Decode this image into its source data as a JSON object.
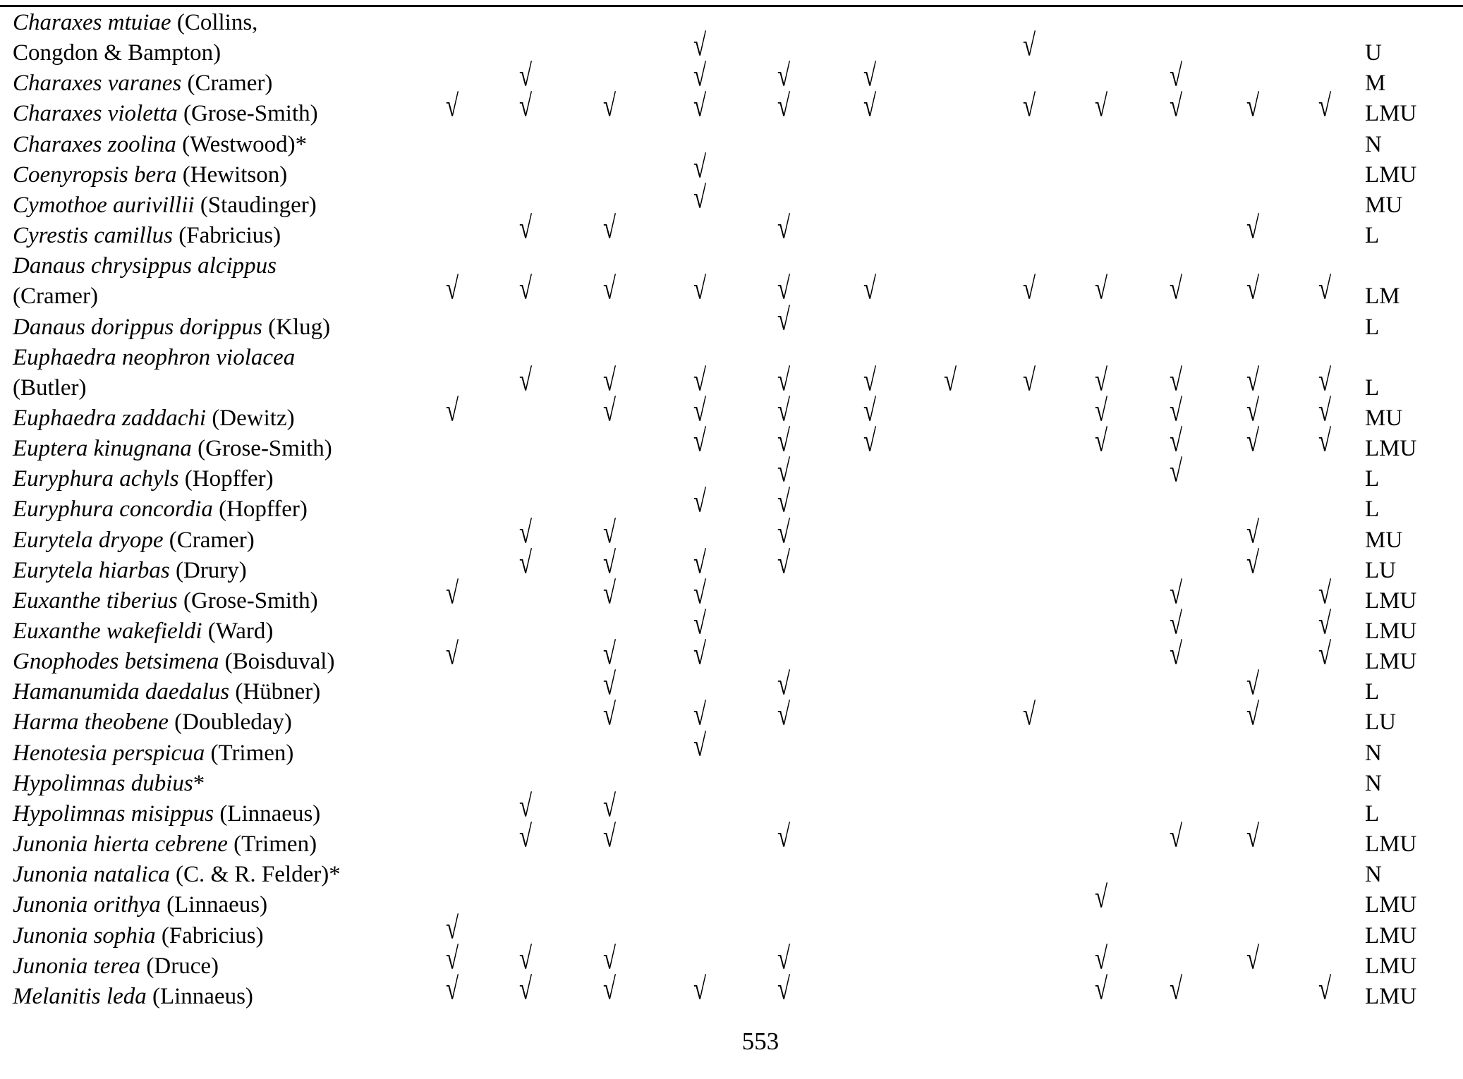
{
  "check_symbol": "√",
  "rows": [
    {
      "lines": [
        {
          "italic": "Charaxes mtuiae",
          "roman": " (Collins,"
        },
        {
          "italic": "",
          "roman": "Congdon & Bampton)"
        }
      ],
      "checks": [
        4,
        8
      ],
      "code": "U"
    },
    {
      "lines": [
        {
          "italic": "Charaxes varanes",
          "roman": " (Cramer)"
        }
      ],
      "checks": [
        2,
        4,
        5,
        6,
        10
      ],
      "code": "M"
    },
    {
      "lines": [
        {
          "italic": "Charaxes violetta",
          "roman": " (Grose-Smith)"
        }
      ],
      "checks": [
        1,
        2,
        3,
        4,
        5,
        6,
        8,
        9,
        10,
        11,
        12
      ],
      "code": "LMU"
    },
    {
      "lines": [
        {
          "italic": "Charaxes zoolina",
          "roman": " (Westwood)*"
        }
      ],
      "checks": [],
      "code": "N"
    },
    {
      "lines": [
        {
          "italic": "Coenyropsis bera",
          "roman": " (Hewitson)"
        }
      ],
      "checks": [
        4
      ],
      "code": "LMU"
    },
    {
      "lines": [
        {
          "italic": "Cymothoe aurivillii",
          "roman": " (Staudinger)"
        }
      ],
      "checks": [
        4
      ],
      "code": "MU"
    },
    {
      "lines": [
        {
          "italic": "Cyrestis camillus",
          "roman": " (Fabricius)"
        }
      ],
      "checks": [
        2,
        3,
        5,
        11
      ],
      "code": "L"
    },
    {
      "lines": [
        {
          "italic": "Danaus chrysippus alcippus",
          "roman": ""
        },
        {
          "italic": "",
          "roman": "(Cramer)"
        }
      ],
      "checks": [
        1,
        2,
        3,
        4,
        5,
        6,
        8,
        9,
        10,
        11,
        12
      ],
      "code": "LM"
    },
    {
      "lines": [
        {
          "italic": "Danaus dorippus dorippus",
          "roman": " (Klug)"
        }
      ],
      "checks": [
        5
      ],
      "code": "L"
    },
    {
      "lines": [
        {
          "italic": "Euphaedra neophron violacea",
          "roman": ""
        },
        {
          "italic": "",
          "roman": "(Butler)"
        }
      ],
      "checks": [
        2,
        3,
        4,
        5,
        6,
        7,
        8,
        9,
        10,
        11,
        12
      ],
      "code": "L"
    },
    {
      "lines": [
        {
          "italic": "Euphaedra zaddachi",
          "roman": " (Dewitz)"
        }
      ],
      "checks": [
        1,
        3,
        4,
        5,
        6,
        9,
        10,
        11,
        12
      ],
      "code": "MU"
    },
    {
      "lines": [
        {
          "italic": "Euptera kinugnana",
          "roman": " (Grose-Smith)"
        }
      ],
      "checks": [
        4,
        5,
        6,
        9,
        10,
        11,
        12
      ],
      "code": "LMU"
    },
    {
      "lines": [
        {
          "italic": "Euryphura achyls",
          "roman": " (Hopffer)"
        }
      ],
      "checks": [
        5,
        10
      ],
      "code": "L"
    },
    {
      "lines": [
        {
          "italic": "Euryphura concordia",
          "roman": " (Hopffer)"
        }
      ],
      "checks": [
        4,
        5
      ],
      "code": "L"
    },
    {
      "lines": [
        {
          "italic": "Eurytela dryope",
          "roman": " (Cramer)"
        }
      ],
      "checks": [
        2,
        3,
        5,
        11
      ],
      "code": "MU"
    },
    {
      "lines": [
        {
          "italic": "Eurytela hiarbas",
          "roman": " (Drury)"
        }
      ],
      "checks": [
        2,
        3,
        4,
        5,
        11
      ],
      "code": "LU"
    },
    {
      "lines": [
        {
          "italic": "Euxanthe tiberius",
          "roman": " (Grose-Smith)"
        }
      ],
      "checks": [
        1,
        3,
        4,
        10,
        12
      ],
      "code": "LMU"
    },
    {
      "lines": [
        {
          "italic": "Euxanthe wakefieldi",
          "roman": " (Ward)"
        }
      ],
      "checks": [
        4,
        10,
        12
      ],
      "code": "LMU"
    },
    {
      "lines": [
        {
          "italic": "Gnophodes betsimena",
          "roman": " (Boisduval)"
        }
      ],
      "checks": [
        1,
        3,
        4,
        10,
        12
      ],
      "code": "LMU"
    },
    {
      "lines": [
        {
          "italic": "Hamanumida daedalus",
          "roman": " (Hübner)"
        }
      ],
      "checks": [
        3,
        5,
        11
      ],
      "code": "L"
    },
    {
      "lines": [
        {
          "italic": "Harma theobene",
          "roman": " (Doubleday)"
        }
      ],
      "checks": [
        3,
        4,
        5,
        8,
        11
      ],
      "code": "LU"
    },
    {
      "lines": [
        {
          "italic": "Henotesia perspicua",
          "roman": " (Trimen)"
        }
      ],
      "checks": [
        4
      ],
      "code": "N"
    },
    {
      "lines": [
        {
          "italic": "Hypolimnas dubius",
          "roman": "*"
        }
      ],
      "checks": [],
      "code": "N"
    },
    {
      "lines": [
        {
          "italic": "Hypolimnas misippus",
          "roman": " (Linnaeus)"
        }
      ],
      "checks": [
        2,
        3
      ],
      "code": "L"
    },
    {
      "lines": [
        {
          "italic": "Junonia hierta cebrene",
          "roman": " (Trimen)"
        }
      ],
      "checks": [
        2,
        3,
        5,
        10,
        11
      ],
      "code": "LMU"
    },
    {
      "lines": [
        {
          "italic": "Junonia natalica",
          "roman": " (C. & R. Felder)*"
        }
      ],
      "checks": [],
      "code": "N"
    },
    {
      "lines": [
        {
          "italic": "Junonia orithya",
          "roman": " (Linnaeus)"
        }
      ],
      "checks": [
        9
      ],
      "code": "LMU"
    },
    {
      "lines": [
        {
          "italic": "Junonia sophia",
          "roman": " (Fabricius)"
        }
      ],
      "checks": [
        1
      ],
      "code": "LMU"
    },
    {
      "lines": [
        {
          "italic": "Junonia terea",
          "roman": " (Druce)"
        }
      ],
      "checks": [
        1,
        2,
        3,
        5,
        9,
        11
      ],
      "code": "LMU"
    },
    {
      "lines": [
        {
          "italic": "Melanitis leda",
          "roman": " (Linnaeus)"
        }
      ],
      "checks": [
        1,
        2,
        3,
        4,
        5,
        9,
        10,
        12
      ],
      "code": "LMU"
    }
  ],
  "page_number": "553"
}
